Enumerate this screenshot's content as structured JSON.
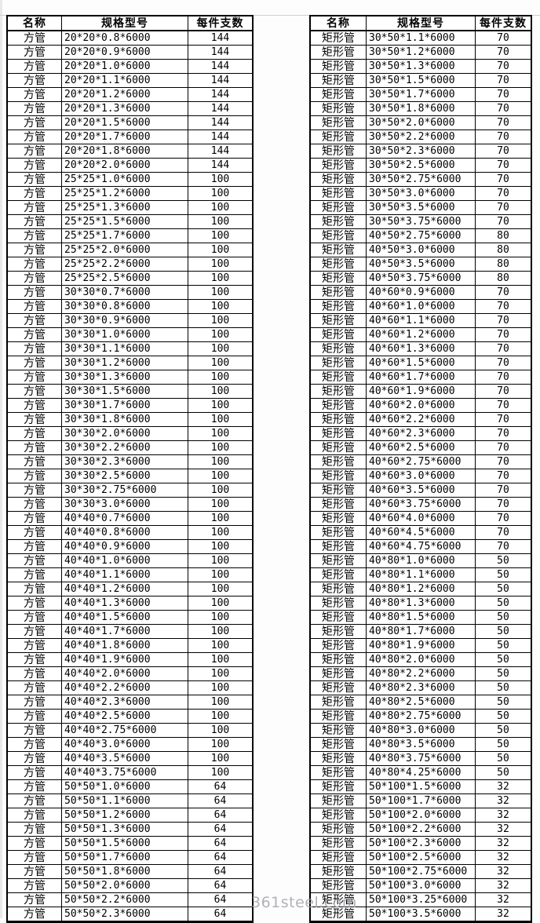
{
  "page": {
    "watermark": "361steel.com"
  },
  "tables": [
    {
      "title": "square-tube-table",
      "headers": [
        "名称",
        "规格型号",
        "每件支数"
      ],
      "rows": [
        [
          "方管",
          "20*20*0.8*6000",
          "144"
        ],
        [
          "方管",
          "20*20*0.9*6000",
          "144"
        ],
        [
          "方管",
          "20*20*1.0*6000",
          "144"
        ],
        [
          "方管",
          "20*20*1.1*6000",
          "144"
        ],
        [
          "方管",
          "20*20*1.2*6000",
          "144"
        ],
        [
          "方管",
          "20*20*1.3*6000",
          "144"
        ],
        [
          "方管",
          "20*20*1.5*6000",
          "144"
        ],
        [
          "方管",
          "20*20*1.7*6000",
          "144"
        ],
        [
          "方管",
          "20*20*1.8*6000",
          "144"
        ],
        [
          "方管",
          "20*20*2.0*6000",
          "144"
        ],
        [
          "方管",
          "25*25*1.0*6000",
          "100"
        ],
        [
          "方管",
          "25*25*1.2*6000",
          "100"
        ],
        [
          "方管",
          "25*25*1.3*6000",
          "100"
        ],
        [
          "方管",
          "25*25*1.5*6000",
          "100"
        ],
        [
          "方管",
          "25*25*1.7*6000",
          "100"
        ],
        [
          "方管",
          "25*25*2.0*6000",
          "100"
        ],
        [
          "方管",
          "25*25*2.2*6000",
          "100"
        ],
        [
          "方管",
          "25*25*2.5*6000",
          "100"
        ],
        [
          "方管",
          "30*30*0.7*6000",
          "100"
        ],
        [
          "方管",
          "30*30*0.8*6000",
          "100"
        ],
        [
          "方管",
          "30*30*0.9*6000",
          "100"
        ],
        [
          "方管",
          "30*30*1.0*6000",
          "100"
        ],
        [
          "方管",
          "30*30*1.1*6000",
          "100"
        ],
        [
          "方管",
          "30*30*1.2*6000",
          "100"
        ],
        [
          "方管",
          "30*30*1.3*6000",
          "100"
        ],
        [
          "方管",
          "30*30*1.5*6000",
          "100"
        ],
        [
          "方管",
          "30*30*1.7*6000",
          "100"
        ],
        [
          "方管",
          "30*30*1.8*6000",
          "100"
        ],
        [
          "方管",
          "30*30*2.0*6000",
          "100"
        ],
        [
          "方管",
          "30*30*2.2*6000",
          "100"
        ],
        [
          "方管",
          "30*30*2.3*6000",
          "100"
        ],
        [
          "方管",
          "30*30*2.5*6000",
          "100"
        ],
        [
          "方管",
          "30*30*2.75*6000",
          "100"
        ],
        [
          "方管",
          "30*30*3.0*6000",
          "100"
        ],
        [
          "方管",
          "40*40*0.7*6000",
          "100"
        ],
        [
          "方管",
          "40*40*0.8*6000",
          "100"
        ],
        [
          "方管",
          "40*40*0.9*6000",
          "100"
        ],
        [
          "方管",
          "40*40*1.0*6000",
          "100"
        ],
        [
          "方管",
          "40*40*1.1*6000",
          "100"
        ],
        [
          "方管",
          "40*40*1.2*6000",
          "100"
        ],
        [
          "方管",
          "40*40*1.3*6000",
          "100"
        ],
        [
          "方管",
          "40*40*1.5*6000",
          "100"
        ],
        [
          "方管",
          "40*40*1.7*6000",
          "100"
        ],
        [
          "方管",
          "40*40*1.8*6000",
          "100"
        ],
        [
          "方管",
          "40*40*1.9*6000",
          "100"
        ],
        [
          "方管",
          "40*40*2.0*6000",
          "100"
        ],
        [
          "方管",
          "40*40*2.2*6000",
          "100"
        ],
        [
          "方管",
          "40*40*2.3*6000",
          "100"
        ],
        [
          "方管",
          "40*40*2.5*6000",
          "100"
        ],
        [
          "方管",
          "40*40*2.75*6000",
          "100"
        ],
        [
          "方管",
          "40*40*3.0*6000",
          "100"
        ],
        [
          "方管",
          "40*40*3.5*6000",
          "100"
        ],
        [
          "方管",
          "40*40*3.75*6000",
          "100"
        ],
        [
          "方管",
          "50*50*1.0*6000",
          "64"
        ],
        [
          "方管",
          "50*50*1.1*6000",
          "64"
        ],
        [
          "方管",
          "50*50*1.2*6000",
          "64"
        ],
        [
          "方管",
          "50*50*1.3*6000",
          "64"
        ],
        [
          "方管",
          "50*50*1.5*6000",
          "64"
        ],
        [
          "方管",
          "50*50*1.7*6000",
          "64"
        ],
        [
          "方管",
          "50*50*1.8*6000",
          "64"
        ],
        [
          "方管",
          "50*50*2.0*6000",
          "64"
        ],
        [
          "方管",
          "50*50*2.2*6000",
          "64"
        ],
        [
          "方管",
          "50*50*2.3*6000",
          "64"
        ]
      ]
    },
    {
      "title": "rectangular-tube-table",
      "headers": [
        "名称",
        "规格型号",
        "每件支数"
      ],
      "rows": [
        [
          "矩形管",
          "30*50*1.1*6000",
          "70"
        ],
        [
          "矩形管",
          "30*50*1.2*6000",
          "70"
        ],
        [
          "矩形管",
          "30*50*1.3*6000",
          "70"
        ],
        [
          "矩形管",
          "30*50*1.5*6000",
          "70"
        ],
        [
          "矩形管",
          "30*50*1.7*6000",
          "70"
        ],
        [
          "矩形管",
          "30*50*1.8*6000",
          "70"
        ],
        [
          "矩形管",
          "30*50*2.0*6000",
          "70"
        ],
        [
          "矩形管",
          "30*50*2.2*6000",
          "70"
        ],
        [
          "矩形管",
          "30*50*2.3*6000",
          "70"
        ],
        [
          "矩形管",
          "30*50*2.5*6000",
          "70"
        ],
        [
          "矩形管",
          "30*50*2.75*6000",
          "70"
        ],
        [
          "矩形管",
          "30*50*3.0*6000",
          "70"
        ],
        [
          "矩形管",
          "30*50*3.5*6000",
          "70"
        ],
        [
          "矩形管",
          "30*50*3.75*6000",
          "70"
        ],
        [
          "矩形管",
          "40*50*2.75*6000",
          "80"
        ],
        [
          "矩形管",
          "40*50*3.0*6000",
          "80"
        ],
        [
          "矩形管",
          "40*50*3.5*6000",
          "80"
        ],
        [
          "矩形管",
          "40*50*3.75*6000",
          "80"
        ],
        [
          "矩形管",
          "40*60*0.9*6000",
          "70"
        ],
        [
          "矩形管",
          "40*60*1.0*6000",
          "70"
        ],
        [
          "矩形管",
          "40*60*1.1*6000",
          "70"
        ],
        [
          "矩形管",
          "40*60*1.2*6000",
          "70"
        ],
        [
          "矩形管",
          "40*60*1.3*6000",
          "70"
        ],
        [
          "矩形管",
          "40*60*1.5*6000",
          "70"
        ],
        [
          "矩形管",
          "40*60*1.7*6000",
          "70"
        ],
        [
          "矩形管",
          "40*60*1.9*6000",
          "70"
        ],
        [
          "矩形管",
          "40*60*2.0*6000",
          "70"
        ],
        [
          "矩形管",
          "40*60*2.2*6000",
          "70"
        ],
        [
          "矩形管",
          "40*60*2.3*6000",
          "70"
        ],
        [
          "矩形管",
          "40*60*2.5*6000",
          "70"
        ],
        [
          "矩形管",
          "40*60*2.75*6000",
          "70"
        ],
        [
          "矩形管",
          "40*60*3.0*6000",
          "70"
        ],
        [
          "矩形管",
          "40*60*3.5*6000",
          "70"
        ],
        [
          "矩形管",
          "40*60*3.75*6000",
          "70"
        ],
        [
          "矩形管",
          "40*60*4.0*6000",
          "70"
        ],
        [
          "矩形管",
          "40*60*4.5*6000",
          "70"
        ],
        [
          "矩形管",
          "40*60*4.75*6000",
          "70"
        ],
        [
          "矩形管",
          "40*80*1.0*6000",
          "50"
        ],
        [
          "矩形管",
          "40*80*1.1*6000",
          "50"
        ],
        [
          "矩形管",
          "40*80*1.2*6000",
          "50"
        ],
        [
          "矩形管",
          "40*80*1.3*6000",
          "50"
        ],
        [
          "矩形管",
          "40*80*1.5*6000",
          "50"
        ],
        [
          "矩形管",
          "40*80*1.7*6000",
          "50"
        ],
        [
          "矩形管",
          "40*80*1.9*6000",
          "50"
        ],
        [
          "矩形管",
          "40*80*2.0*6000",
          "50"
        ],
        [
          "矩形管",
          "40*80*2.2*6000",
          "50"
        ],
        [
          "矩形管",
          "40*80*2.3*6000",
          "50"
        ],
        [
          "矩形管",
          "40*80*2.5*6000",
          "50"
        ],
        [
          "矩形管",
          "40*80*2.75*6000",
          "50"
        ],
        [
          "矩形管",
          "40*80*3.0*6000",
          "50"
        ],
        [
          "矩形管",
          "40*80*3.5*6000",
          "50"
        ],
        [
          "矩形管",
          "40*80*3.75*6000",
          "50"
        ],
        [
          "矩形管",
          "40*80*4.25*6000",
          "50"
        ],
        [
          "矩形管",
          "50*100*1.5*6000",
          "32"
        ],
        [
          "矩形管",
          "50*100*1.7*6000",
          "32"
        ],
        [
          "矩形管",
          "50*100*2.0*6000",
          "32"
        ],
        [
          "矩形管",
          "50*100*2.2*6000",
          "32"
        ],
        [
          "矩形管",
          "50*100*2.3*6000",
          "32"
        ],
        [
          "矩形管",
          "50*100*2.5*6000",
          "32"
        ],
        [
          "矩形管",
          "50*100*2.75*6000",
          "32"
        ],
        [
          "矩形管",
          "50*100*3.0*6000",
          "32"
        ],
        [
          "矩形管",
          "50*100*3.25*6000",
          "32"
        ],
        [
          "矩形管",
          "50*100*3.5*6000",
          "32"
        ]
      ]
    }
  ]
}
